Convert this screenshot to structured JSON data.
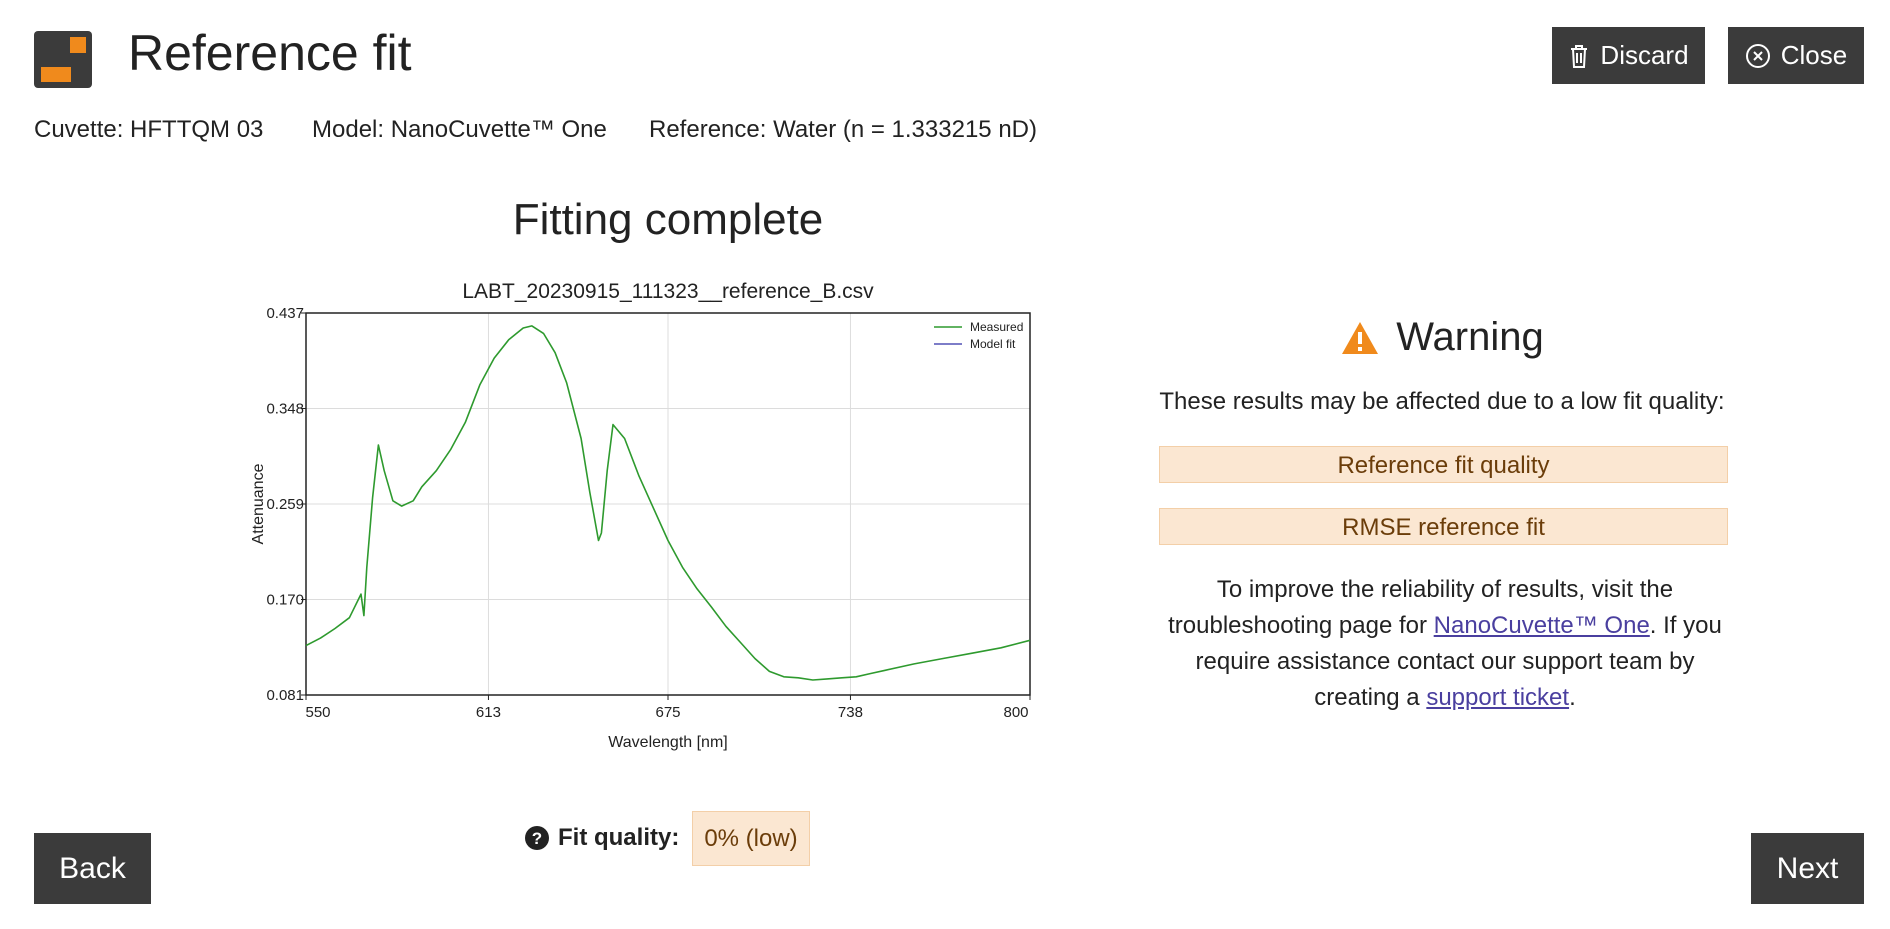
{
  "header": {
    "title": "Reference fit",
    "discard_label": "Discard",
    "close_label": "Close"
  },
  "info": {
    "cuvette": "Cuvette: HFTTQM 03",
    "model": "Model: NanoCuvette™ One",
    "reference": "Reference: Water (n = 1.333215 nD)"
  },
  "status_title": "Fitting complete",
  "chart_data": {
    "type": "line",
    "title": "LABT_20230915_111323__reference_B.csv",
    "xlabel": "Wavelength [nm]",
    "ylabel": "Attenuance",
    "xlim": [
      550,
      800
    ],
    "ylim": [
      0.081,
      0.437
    ],
    "x_ticks": [
      "550",
      "613",
      "675",
      "738",
      "800"
    ],
    "y_ticks": [
      "0.081",
      "0.170",
      "0.259",
      "0.348",
      "0.437"
    ],
    "grid": true,
    "legend_position": "top-right",
    "series": [
      {
        "name": "Measured",
        "color": "#2e9a2e",
        "x": [
          550,
          555,
          560,
          565,
          569,
          570,
          571,
          573,
          575,
          577,
          580,
          583,
          587,
          590,
          595,
          600,
          605,
          610,
          615,
          620,
          625,
          628,
          632,
          636,
          640,
          645,
          648,
          651,
          652,
          654,
          656,
          660,
          665,
          670,
          675,
          680,
          685,
          690,
          695,
          700,
          705,
          710,
          715,
          720,
          725,
          730,
          735,
          740,
          745,
          750,
          760,
          770,
          780,
          790,
          800
        ],
        "values": [
          0.127,
          0.134,
          0.143,
          0.153,
          0.175,
          0.155,
          0.2,
          0.265,
          0.314,
          0.29,
          0.262,
          0.257,
          0.262,
          0.275,
          0.29,
          0.31,
          0.335,
          0.37,
          0.395,
          0.412,
          0.423,
          0.425,
          0.418,
          0.4,
          0.372,
          0.32,
          0.27,
          0.225,
          0.232,
          0.29,
          0.333,
          0.32,
          0.285,
          0.255,
          0.225,
          0.2,
          0.18,
          0.163,
          0.145,
          0.13,
          0.115,
          0.103,
          0.098,
          0.097,
          0.095,
          0.096,
          0.097,
          0.098,
          0.101,
          0.104,
          0.11,
          0.115,
          0.12,
          0.125,
          0.132
        ]
      },
      {
        "name": "Model fit",
        "color": "#5252b5",
        "x": [],
        "values": []
      }
    ]
  },
  "warning": {
    "title": "Warning",
    "text": "These results may be affected due to a low fit quality:",
    "items": [
      "Reference fit quality",
      "RMSE reference fit"
    ],
    "help_1": "To improve the reliability of results, visit the troubleshooting page for ",
    "help_link_1": "NanoCuvette™ One",
    "help_2": ". If you require assistance contact our support team by creating a ",
    "help_link_2": "support ticket",
    "help_3": "."
  },
  "fit_quality": {
    "label": "Fit quality:",
    "value": "0% (low)"
  },
  "nav": {
    "back_label": "Back",
    "next_label": "Next"
  },
  "colors": {
    "button_bg": "#3b3b3b",
    "logo_orange": "#f08a1c",
    "warning_orange": "#f08a1c",
    "warning_box_bg": "#fbe7d2",
    "link": "#4a3f9f"
  }
}
